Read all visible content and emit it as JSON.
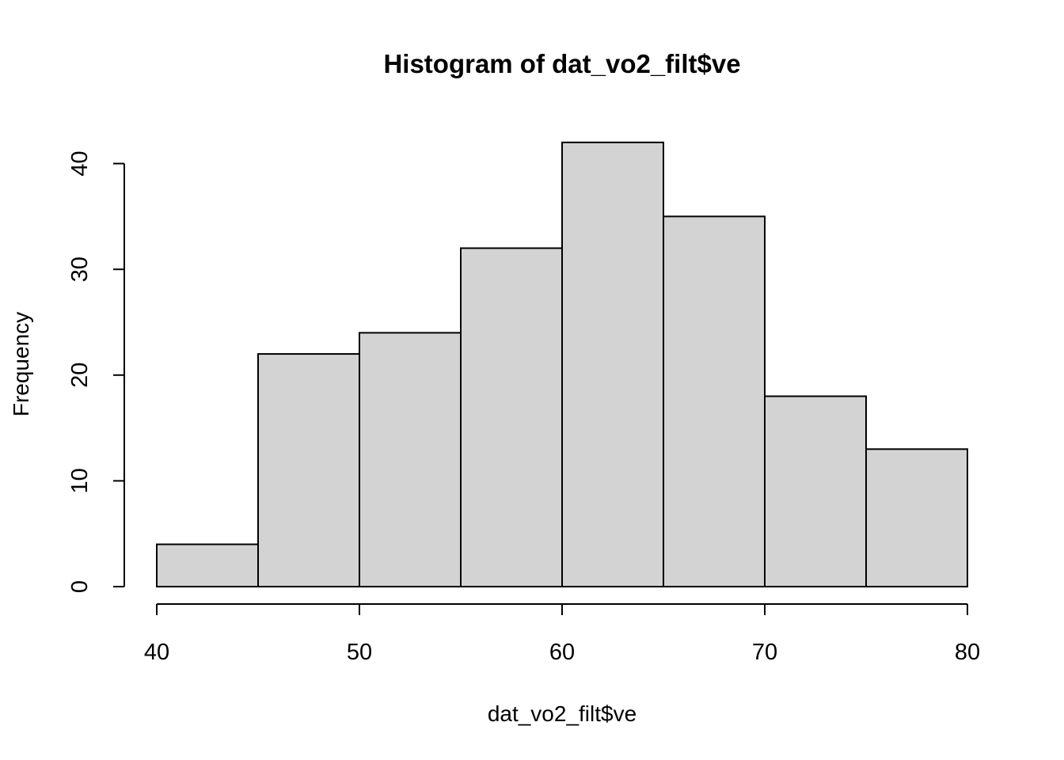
{
  "chart_data": {
    "type": "bar",
    "title": "Histogram of dat_vo2_filt$ve",
    "xlabel": "dat_vo2_filt$ve",
    "ylabel": "Frequency",
    "bins": [
      {
        "from": 40,
        "to": 45,
        "count": 4
      },
      {
        "from": 45,
        "to": 50,
        "count": 22
      },
      {
        "from": 50,
        "to": 55,
        "count": 24
      },
      {
        "from": 55,
        "to": 60,
        "count": 32
      },
      {
        "from": 60,
        "to": 65,
        "count": 42
      },
      {
        "from": 65,
        "to": 70,
        "count": 35
      },
      {
        "from": 70,
        "to": 75,
        "count": 18
      },
      {
        "from": 75,
        "to": 80,
        "count": 13
      }
    ],
    "xlim": [
      40,
      80
    ],
    "ylim": [
      0,
      42
    ],
    "x_ticks": [
      "40",
      "50",
      "60",
      "70",
      "80"
    ],
    "y_ticks": [
      "0",
      "10",
      "20",
      "30",
      "40"
    ],
    "grid": false,
    "colors": {
      "bar_fill": "#d3d3d3",
      "bar_stroke": "#000000",
      "background": "#ffffff"
    }
  }
}
